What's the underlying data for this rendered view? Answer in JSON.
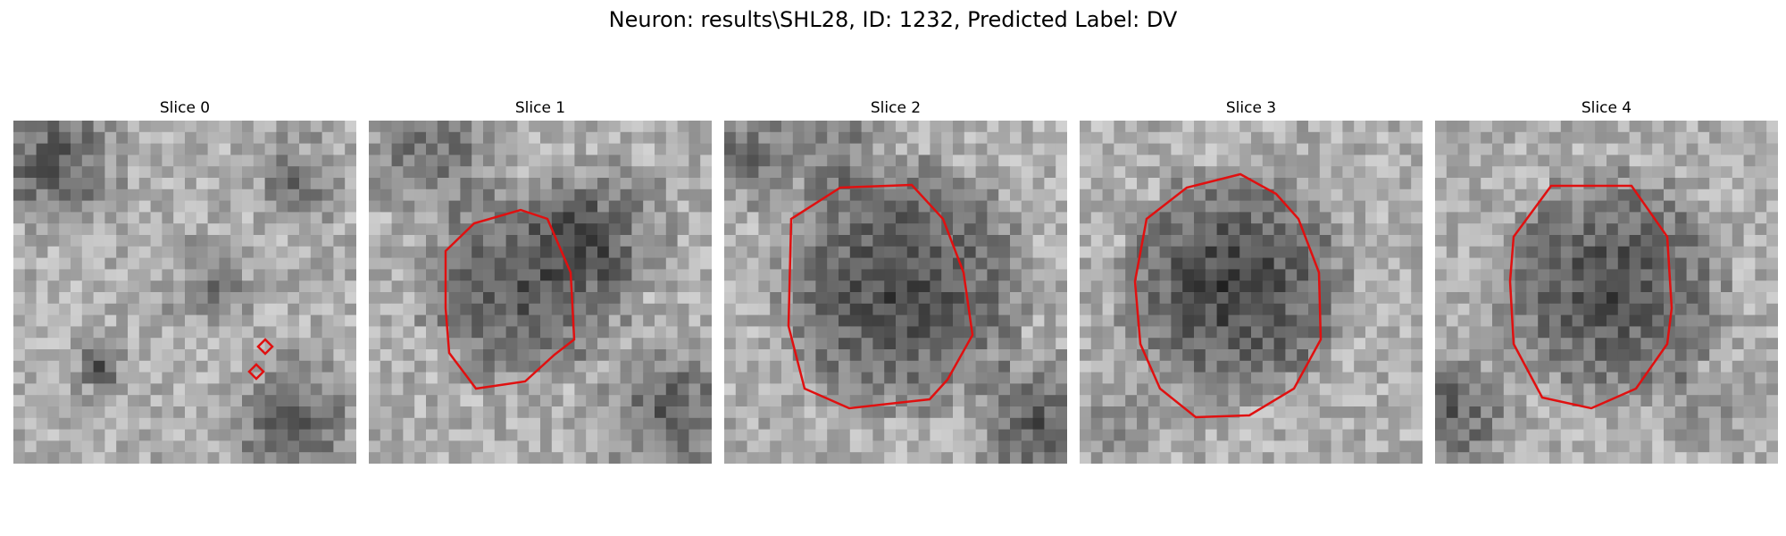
{
  "figure": {
    "title": "Neuron: results\\SHL28, ID: 1232, Predicted Label: DV",
    "contour_color": "#e01010",
    "colormap": "gray"
  },
  "panels": [
    {
      "title": "Slice 0",
      "description_icon": "grayscale-micrograph",
      "seed": 11
    },
    {
      "title": "Slice 1",
      "description_icon": "grayscale-micrograph",
      "seed": 23
    },
    {
      "title": "Slice 2",
      "description_icon": "grayscale-micrograph",
      "seed": 37
    },
    {
      "title": "Slice 3",
      "description_icon": "grayscale-micrograph",
      "seed": 41
    },
    {
      "title": "Slice 4",
      "description_icon": "grayscale-micrograph",
      "seed": 53
    }
  ]
}
